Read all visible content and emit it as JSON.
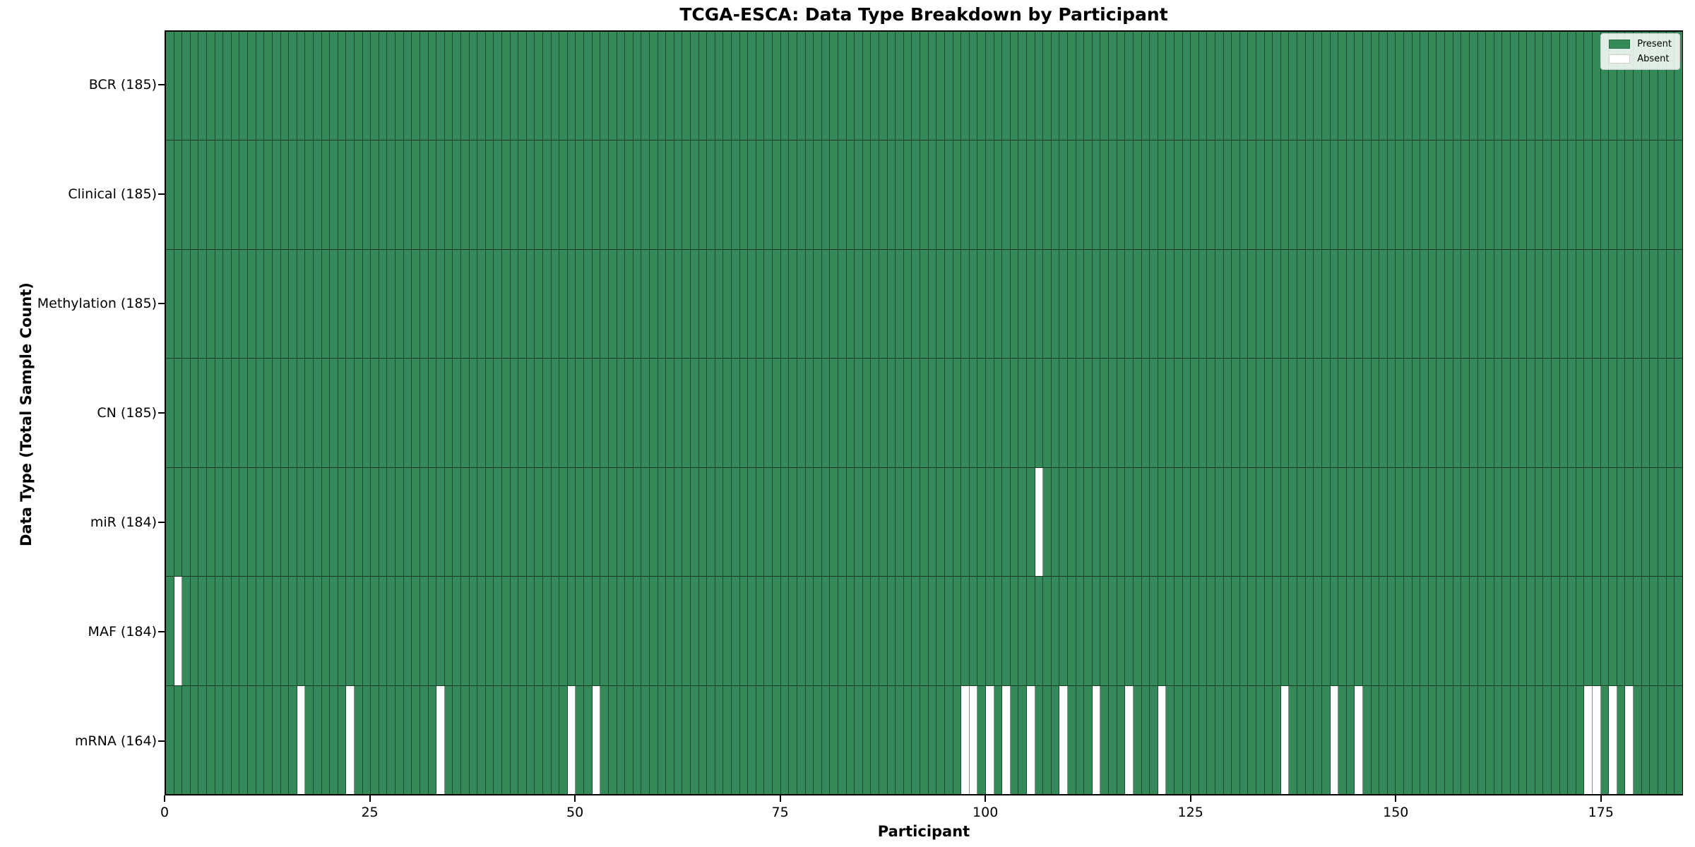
{
  "title": "TCGA-ESCA: Data Type Breakdown by Participant",
  "x_axis_label": "Participant",
  "y_axis_label": "Data Type (Total Sample Count)",
  "legend": {
    "present_label": "Present",
    "absent_label": "Absent"
  },
  "colors": {
    "present": "#348a58",
    "absent": "#ffffff",
    "gridline": "rgba(0,0,0,0.45)",
    "row_separator": "rgba(0,0,0,0.6)",
    "spine": "#000000"
  },
  "chart_data": {
    "type": "heatmap",
    "title": "TCGA-ESCA: Data Type Breakdown by Participant",
    "xlabel": "Participant",
    "ylabel": "Data Type (Total Sample Count)",
    "x_range": [
      0,
      185
    ],
    "n_participants": 185,
    "x_ticks": [
      0,
      25,
      50,
      75,
      100,
      125,
      150,
      175
    ],
    "legend_entries": [
      "Present",
      "Absent"
    ],
    "legend_position": "upper right",
    "grid": true,
    "rows": [
      {
        "label": "BCR (185)",
        "data_type": "BCR",
        "total": 185,
        "absent_participants": []
      },
      {
        "label": "Clinical (185)",
        "data_type": "Clinical",
        "total": 185,
        "absent_participants": []
      },
      {
        "label": "Methylation (185)",
        "data_type": "Methylation",
        "total": 185,
        "absent_participants": []
      },
      {
        "label": "CN (185)",
        "data_type": "CN",
        "total": 185,
        "absent_participants": []
      },
      {
        "label": "miR (184)",
        "data_type": "miR",
        "total": 184,
        "absent_participants": [
          106
        ]
      },
      {
        "label": "MAF (184)",
        "data_type": "MAF",
        "total": 184,
        "absent_participants": [
          1
        ]
      },
      {
        "label": "mRNA (164)",
        "data_type": "mRNA",
        "total": 164,
        "absent_participants": [
          16,
          22,
          33,
          49,
          52,
          97,
          98,
          100,
          102,
          105,
          109,
          113,
          117,
          121,
          136,
          142,
          145,
          173,
          174,
          176,
          178
        ]
      }
    ]
  }
}
